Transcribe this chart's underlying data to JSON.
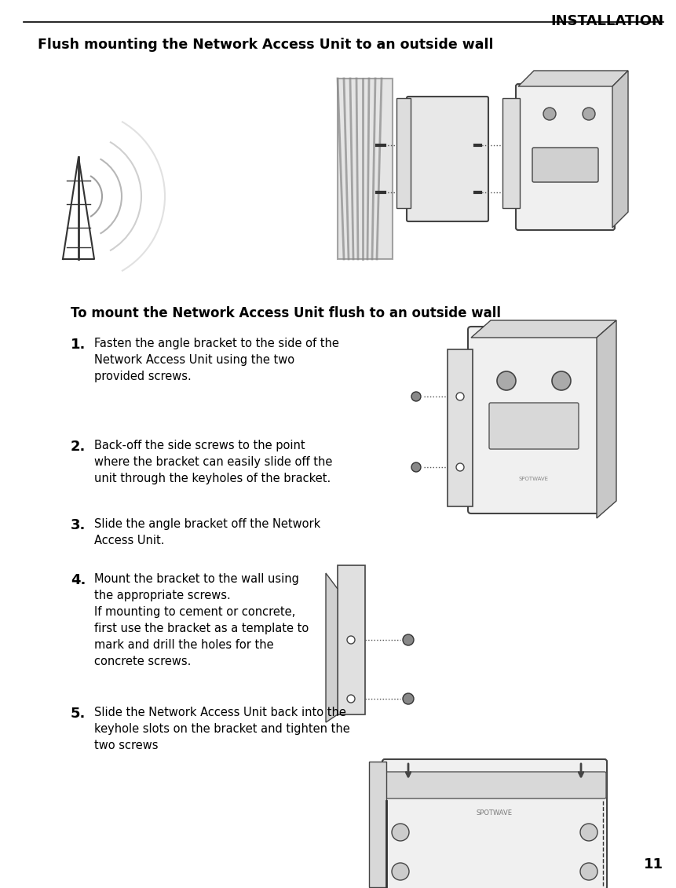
{
  "page_number": "11",
  "header_text": "INSTALLATION",
  "section_title": "Flush mounting the Network Access Unit to an outside wall",
  "subsection_title": "To mount the Network Access Unit flush to an outside wall",
  "steps": [
    {
      "number": "1.",
      "text": "Fasten the angle bracket to the side of the\nNetwork Access Unit using the two\nprovided screws."
    },
    {
      "number": "2.",
      "text": "Back-off the side screws to the point\nwhere the bracket can easily slide off the\nunit through the keyholes of the bracket."
    },
    {
      "number": "3.",
      "text": "Slide the angle bracket off the Network\nAccess Unit."
    },
    {
      "number": "4.",
      "text": "Mount the bracket to the wall using\nthe appropriate screws.\nIf mounting to cement or concrete,\nfirst use the bracket as a template to\nmark and drill the holes for the\nconcrete screws."
    },
    {
      "number": "5.",
      "text": "Slide the Network Access Unit back into the\nkeyhole slots on the bracket and tighten the\ntwo screws"
    }
  ],
  "bg_color": "#ffffff",
  "text_color": "#000000",
  "header_line_color": "#000000",
  "section_title_bold": true,
  "step_number_fontsize": 14,
  "step_text_fontsize": 10,
  "section_title_fontsize": 12,
  "subsection_title_fontsize": 12,
  "header_fontsize": 14
}
